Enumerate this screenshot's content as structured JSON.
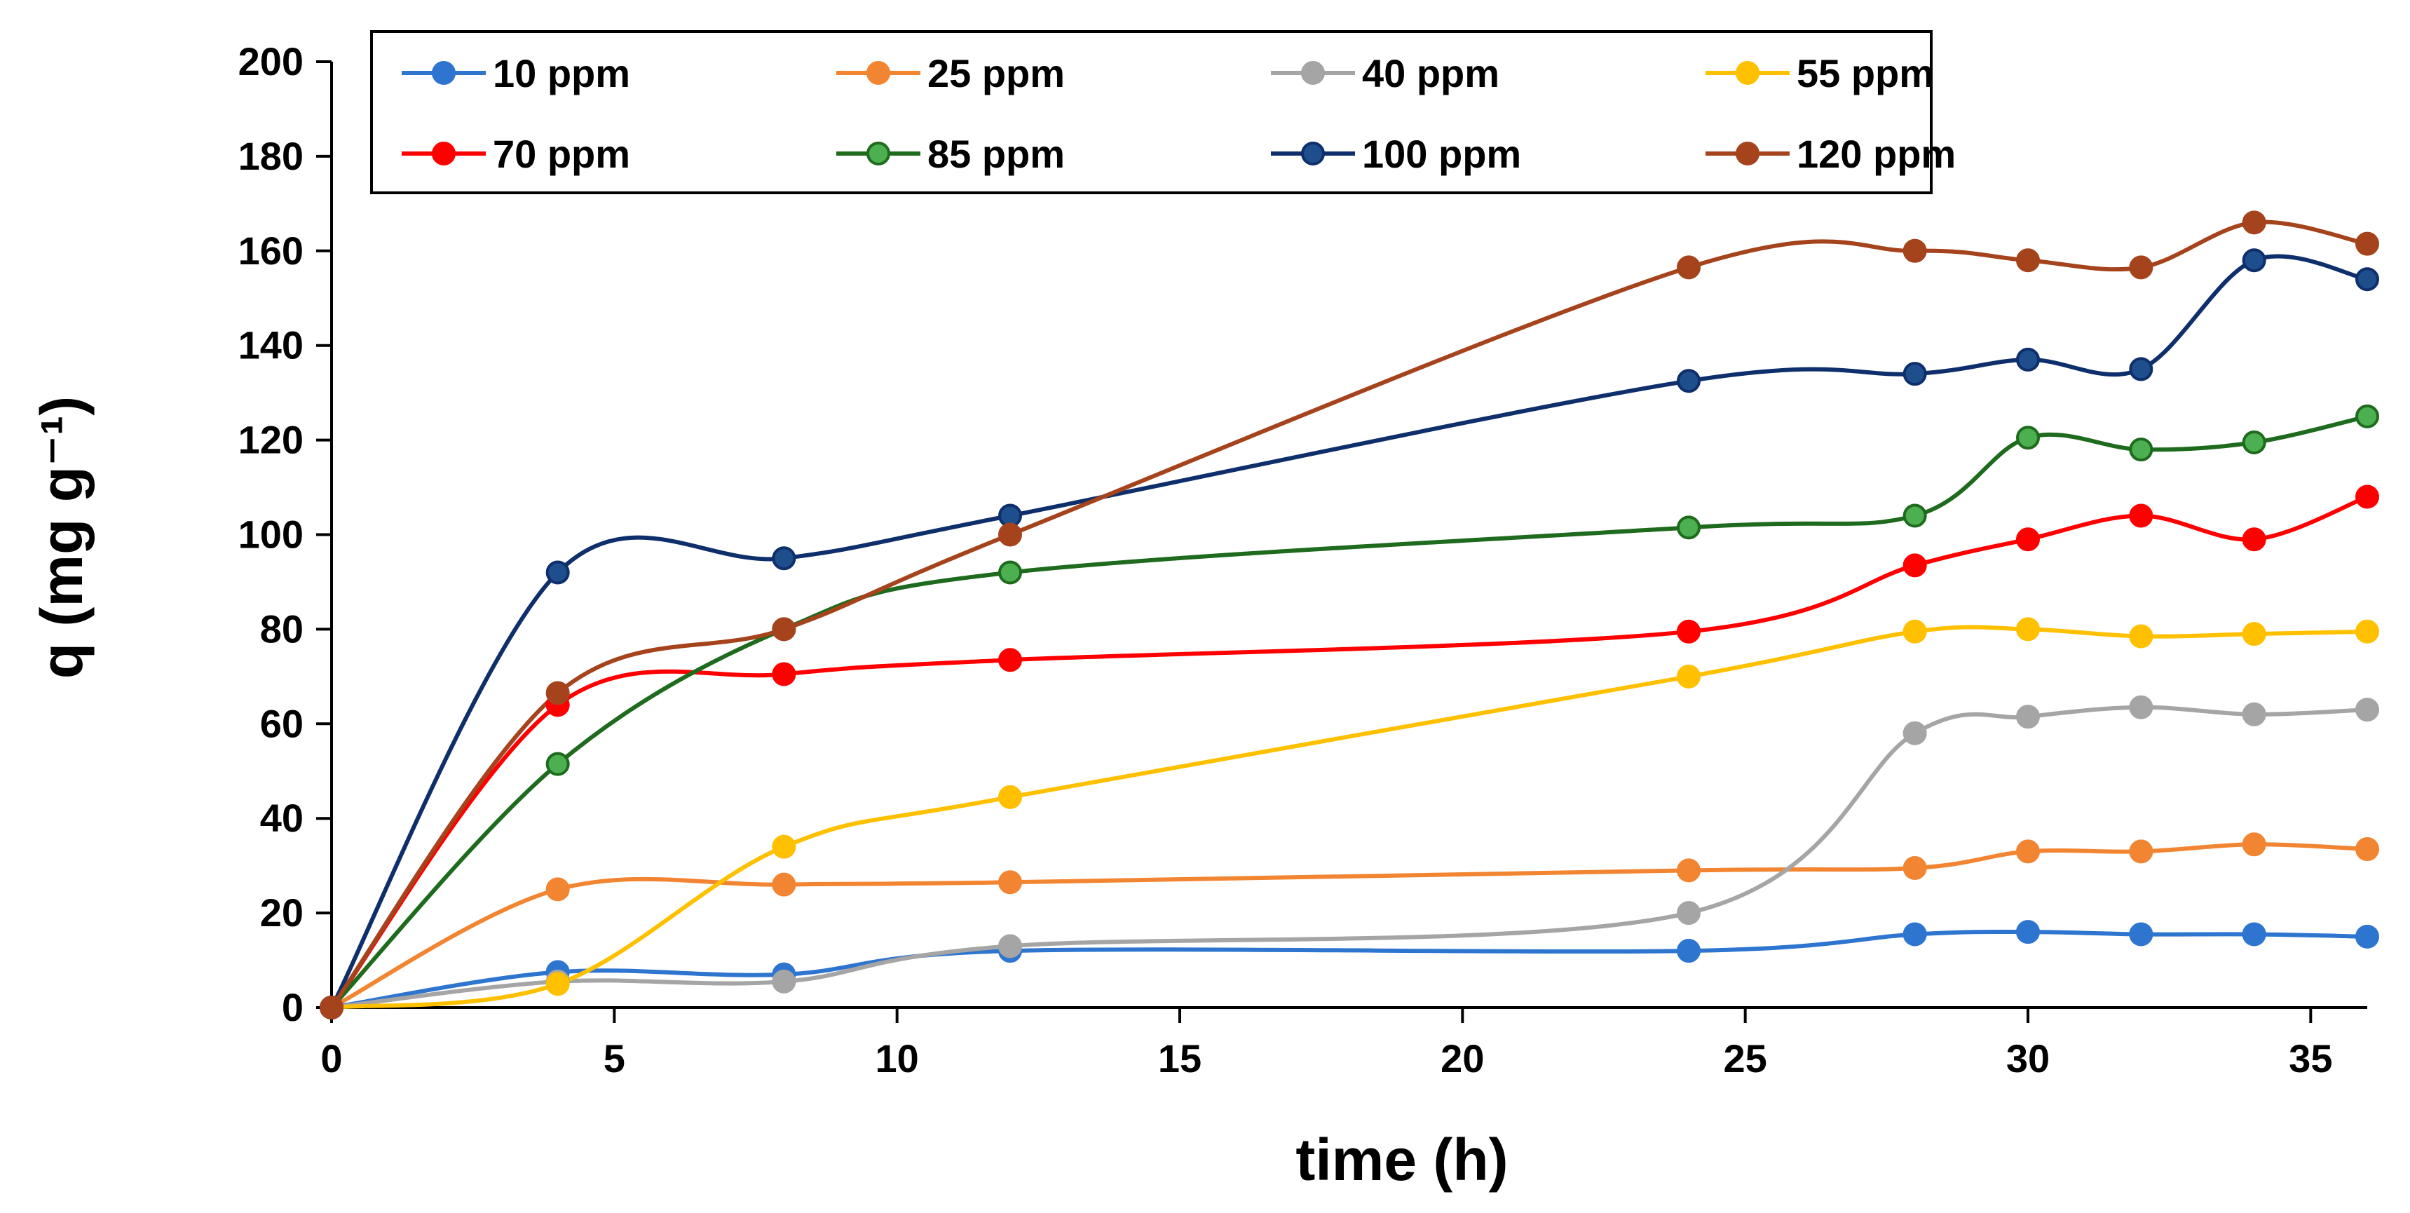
{
  "chart_data": {
    "type": "line",
    "title": "",
    "xlabel": "time (h)",
    "ylabel": "q  (mg g⁻¹)",
    "xlim": [
      0,
      36
    ],
    "ylim": [
      0,
      200
    ],
    "xticks": [
      0,
      5,
      10,
      15,
      20,
      25,
      30,
      35
    ],
    "yticks": [
      0,
      20,
      40,
      60,
      80,
      100,
      120,
      140,
      160,
      180,
      200
    ],
    "legend_position": "top",
    "x": [
      0,
      4,
      8,
      12,
      24,
      28,
      30,
      32,
      34,
      36
    ],
    "series": [
      {
        "name": "10 ppm",
        "color": "#2E75D0",
        "marker_face": "#2E75D0",
        "values": [
          0,
          7.5,
          7,
          12,
          12,
          15.5,
          16,
          15.5,
          15.5,
          15
        ]
      },
      {
        "name": "25 ppm",
        "color": "#F28532",
        "marker_face": "#F28532",
        "values": [
          0,
          25,
          26,
          26.5,
          29,
          29.5,
          33,
          33,
          34.5,
          33.5
        ]
      },
      {
        "name": "40 ppm",
        "color": "#A5A5A5",
        "marker_face": "#A5A5A5",
        "values": [
          0,
          5.5,
          5.5,
          13,
          20,
          58,
          61.5,
          63.5,
          62,
          63
        ]
      },
      {
        "name": "55 ppm",
        "color": "#FFC000",
        "marker_face": "#FFC000",
        "values": [
          0,
          5,
          34,
          44.5,
          70,
          79.5,
          80,
          78.5,
          79,
          79.5
        ]
      },
      {
        "name": "70 ppm",
        "color": "#FF0000",
        "marker_face": "#FF0000",
        "values": [
          0,
          64,
          70.5,
          73.5,
          79.5,
          93.5,
          99,
          104,
          99,
          108
        ]
      },
      {
        "name": "85 ppm",
        "color": "#1E6B1E",
        "marker_face": "#4CAF50",
        "values": [
          0,
          51.5,
          80,
          92,
          101.5,
          104,
          120.5,
          118,
          119.5,
          125
        ]
      },
      {
        "name": "100 ppm",
        "color": "#0E2F6B",
        "marker_face": "#1F4E8C",
        "values": [
          0,
          92,
          95,
          104,
          132.5,
          134,
          137,
          135,
          158,
          154
        ]
      },
      {
        "name": "120 ppm",
        "color": "#A5431C",
        "marker_face": "#A5431C",
        "values": [
          0,
          66.5,
          80,
          100,
          156.5,
          160,
          158,
          156.5,
          166,
          161.5
        ]
      }
    ]
  }
}
